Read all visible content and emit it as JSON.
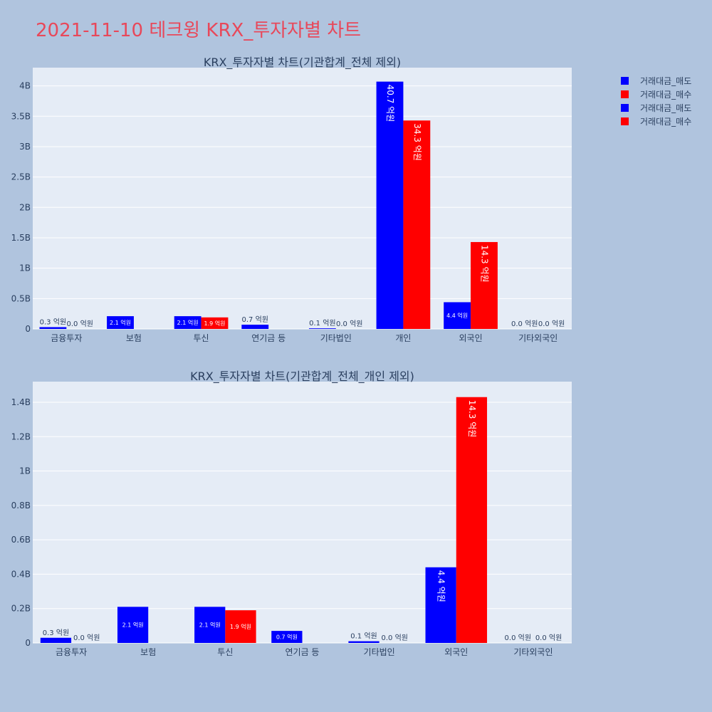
{
  "page": {
    "title": "2021-11-10 테크윙 KRX_투자자별 차트",
    "title_color": "#e8485a",
    "background": "#b0c4de"
  },
  "legend": {
    "items": [
      {
        "label": "거래대금_매도",
        "color": "#0000ff"
      },
      {
        "label": "거래대금_매수",
        "color": "#ff0000"
      },
      {
        "label": "거래대금_매도",
        "color": "#0000ff"
      },
      {
        "label": "거래대금_매수",
        "color": "#ff0000"
      }
    ]
  },
  "chart_data": [
    {
      "type": "bar",
      "title": "KRX_투자자별 차트(기관합계_전체 제외)",
      "categories": [
        "금융투자",
        "보험",
        "투신",
        "연기금 등",
        "기타법인",
        "개인",
        "외국인",
        "기타외국인"
      ],
      "series": [
        {
          "name": "거래대금_매도",
          "color": "#0000ff",
          "values": [
            30000000,
            210000000,
            210000000,
            70000000,
            10000000,
            4070000000,
            440000000,
            0
          ],
          "labels": [
            "0.3 억원",
            "2.1 억원",
            "2.1 억원",
            "0.7 억원",
            "0.1 억원",
            "40.7 억원",
            "4.4 억원",
            "0.0 억원"
          ]
        },
        {
          "name": "거래대금_매수",
          "color": "#ff0000",
          "values": [
            0,
            0,
            190000000,
            0,
            0,
            3430000000,
            1430000000,
            0
          ],
          "labels": [
            "0.0 억원",
            "",
            "1.9 억원",
            "",
            "0.0 억원",
            "34.3 억원",
            "14.3 억원",
            "0.0 억원"
          ]
        }
      ],
      "ylim": [
        0,
        4300000000
      ],
      "yticks": [
        0,
        500000000,
        1000000000,
        1500000000,
        2000000000,
        2500000000,
        3000000000,
        3500000000,
        4000000000
      ],
      "ytick_labels": [
        "0",
        "0.5B",
        "1B",
        "1.5B",
        "2B",
        "2.5B",
        "3B",
        "3.5B",
        "4B"
      ],
      "xlabel": "",
      "ylabel": "",
      "grid": true,
      "legend_position": "top-right"
    },
    {
      "type": "bar",
      "title": "KRX_투자자별 차트(기관합계_전체_개인 제외)",
      "categories": [
        "금융투자",
        "보험",
        "투신",
        "연기금 등",
        "기타법인",
        "외국인",
        "기타외국인"
      ],
      "series": [
        {
          "name": "거래대금_매도",
          "color": "#0000ff",
          "values": [
            30000000,
            210000000,
            210000000,
            70000000,
            10000000,
            440000000,
            0
          ],
          "labels": [
            "0.3 억원",
            "2.1 억원",
            "2.1 억원",
            "0.7 억원",
            "0.1 억원",
            "4.4 억원",
            "0.0 억원"
          ]
        },
        {
          "name": "거래대금_매수",
          "color": "#ff0000",
          "values": [
            0,
            0,
            190000000,
            0,
            0,
            1430000000,
            0
          ],
          "labels": [
            "0.0 억원",
            "",
            "1.9 억원",
            "",
            "0.0 억원",
            "14.3 억원",
            "0.0 억원"
          ]
        }
      ],
      "ylim": [
        0,
        1520000000
      ],
      "yticks": [
        0,
        200000000,
        400000000,
        600000000,
        800000000,
        1000000000,
        1200000000,
        1400000000
      ],
      "ytick_labels": [
        "0",
        "0.2B",
        "0.4B",
        "0.6B",
        "0.8B",
        "1B",
        "1.2B",
        "1.4B"
      ],
      "xlabel": "",
      "ylabel": "",
      "grid": true,
      "legend_position": "top-right"
    }
  ]
}
